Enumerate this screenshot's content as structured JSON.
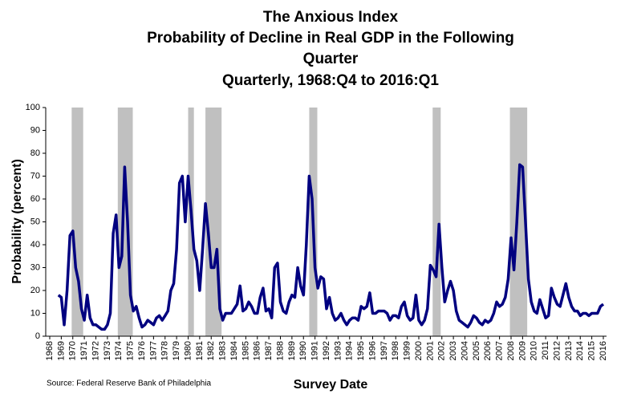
{
  "chart_data": {
    "type": "line",
    "title_lines": [
      "The Anxious Index",
      "Probability of Decline in Real GDP in the Following",
      "Quarter",
      "Quarterly, 1968:Q4 to 2016:Q1"
    ],
    "y_label": "Probability (percent)",
    "x_label": "Survey Date",
    "source": "Source: Federal Reserve Bank of Philadelphia",
    "color": "#000080",
    "recession_color": "#c0c0c0",
    "recessions": [
      [
        1969.9,
        1970.9
      ],
      [
        1973.9,
        1975.2
      ],
      [
        1980.0,
        1980.5
      ],
      [
        1981.5,
        1982.9
      ],
      [
        1990.5,
        1991.2
      ],
      [
        2001.2,
        2001.9
      ],
      [
        2007.9,
        2009.4
      ]
    ],
    "xlim": [
      1968,
      2016
    ],
    "ylim": [
      0,
      100
    ],
    "yticks": [
      0,
      10,
      20,
      30,
      40,
      50,
      60,
      70,
      80,
      90,
      100
    ],
    "xticks": [
      1968,
      1969,
      1970,
      1971,
      1972,
      1973,
      1974,
      1975,
      1976,
      1977,
      1978,
      1979,
      1980,
      1981,
      1982,
      1983,
      1984,
      1985,
      1986,
      1987,
      1988,
      1989,
      1990,
      1991,
      1992,
      1993,
      1994,
      1995,
      1996,
      1997,
      1998,
      1999,
      2000,
      2001,
      2002,
      2003,
      2004,
      2005,
      2006,
      2007,
      2008,
      2009,
      2010,
      2011,
      2012,
      2013,
      2014,
      2015,
      2016
    ],
    "x": [
      1968.75,
      1969,
      1969.25,
      1969.5,
      1969.75,
      1970,
      1970.25,
      1970.5,
      1970.75,
      1971,
      1971.25,
      1971.5,
      1971.75,
      1972,
      1972.25,
      1972.5,
      1972.75,
      1973,
      1973.25,
      1973.5,
      1973.75,
      1974,
      1974.25,
      1974.5,
      1974.75,
      1975,
      1975.25,
      1975.5,
      1975.75,
      1976,
      1976.25,
      1976.5,
      1976.75,
      1977,
      1977.25,
      1977.5,
      1977.75,
      1978,
      1978.25,
      1978.5,
      1978.75,
      1979,
      1979.25,
      1979.5,
      1979.75,
      1980,
      1980.25,
      1980.5,
      1980.75,
      1981,
      1981.25,
      1981.5,
      1981.75,
      1982,
      1982.25,
      1982.5,
      1982.75,
      1983,
      1983.25,
      1983.5,
      1983.75,
      1984,
      1984.25,
      1984.5,
      1984.75,
      1985,
      1985.25,
      1985.5,
      1985.75,
      1986,
      1986.25,
      1986.5,
      1986.75,
      1987,
      1987.25,
      1987.5,
      1987.75,
      1988,
      1988.25,
      1988.5,
      1988.75,
      1989,
      1989.25,
      1989.5,
      1989.75,
      1990,
      1990.25,
      1990.5,
      1990.75,
      1991,
      1991.25,
      1991.5,
      1991.75,
      1992,
      1992.25,
      1992.5,
      1992.75,
      1993,
      1993.25,
      1993.5,
      1993.75,
      1994,
      1994.25,
      1994.5,
      1994.75,
      1995,
      1995.25,
      1995.5,
      1995.75,
      1996,
      1996.25,
      1996.5,
      1996.75,
      1997,
      1997.25,
      1997.5,
      1997.75,
      1998,
      1998.25,
      1998.5,
      1998.75,
      1999,
      1999.25,
      1999.5,
      1999.75,
      2000,
      2000.25,
      2000.5,
      2000.75,
      2001,
      2001.25,
      2001.5,
      2001.75,
      2002,
      2002.25,
      2002.5,
      2002.75,
      2003,
      2003.25,
      2003.5,
      2003.75,
      2004,
      2004.25,
      2004.5,
      2004.75,
      2005,
      2005.25,
      2005.5,
      2005.75,
      2006,
      2006.25,
      2006.5,
      2006.75,
      2007,
      2007.25,
      2007.5,
      2007.75,
      2008,
      2008.25,
      2008.5,
      2008.75,
      2009,
      2009.25,
      2009.5,
      2009.75,
      2010,
      2010.25,
      2010.5,
      2010.75,
      2011,
      2011.25,
      2011.5,
      2011.75,
      2012,
      2012.25,
      2012.5,
      2012.75,
      2013,
      2013.25,
      2013.5,
      2013.75,
      2014,
      2014.25,
      2014.5,
      2014.75,
      2015,
      2015.25,
      2015.5,
      2015.75,
      2016
    ],
    "values": [
      18,
      17,
      5,
      20,
      44,
      46,
      30,
      24,
      12,
      7,
      18,
      8,
      5,
      5,
      4,
      3,
      3,
      5,
      10,
      45,
      53,
      30,
      35,
      74,
      50,
      18,
      11,
      13,
      8,
      4,
      5,
      7,
      6,
      5,
      8,
      9,
      7,
      9,
      11,
      20,
      23,
      38,
      67,
      70,
      50,
      70,
      55,
      38,
      33,
      20,
      38,
      58,
      45,
      30,
      30,
      38,
      12,
      7,
      10,
      10,
      10,
      12,
      14,
      22,
      11,
      12,
      15,
      13,
      10,
      10,
      17,
      21,
      11,
      12,
      8,
      30,
      32,
      15,
      11,
      10,
      15,
      18,
      17,
      30,
      22,
      18,
      40,
      70,
      60,
      30,
      21,
      26,
      25,
      12,
      17,
      10,
      7,
      8,
      10,
      7,
      5,
      7,
      8,
      8,
      7,
      13,
      12,
      13,
      19,
      10,
      10,
      11,
      11,
      11,
      10,
      7,
      9,
      9,
      8,
      13,
      15,
      9,
      7,
      8,
      18,
      7,
      5,
      7,
      12,
      31,
      29,
      26,
      49,
      30,
      15,
      20,
      24,
      20,
      11,
      7,
      6,
      5,
      4,
      6,
      9,
      8,
      6,
      5,
      7,
      6,
      7,
      10,
      15,
      13,
      14,
      17,
      25,
      43,
      29,
      50,
      75,
      74,
      50,
      25,
      15,
      11,
      10,
      16,
      12,
      8,
      9,
      21,
      17,
      14,
      13,
      18,
      23,
      17,
      13,
      11,
      11,
      9,
      10,
      10,
      9,
      10,
      10,
      10,
      13,
      14
    ]
  }
}
